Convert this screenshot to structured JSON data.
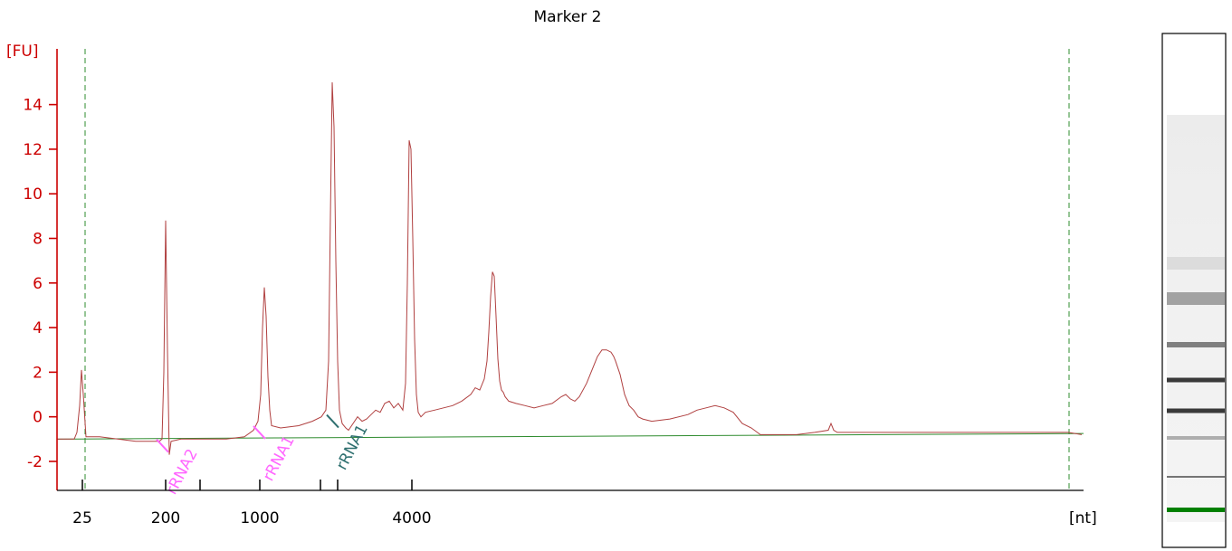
{
  "chart_data": {
    "type": "line",
    "title": "Marker 2",
    "y_unit": "[FU]",
    "x_unit": "[nt]",
    "ylim": [
      -3.3,
      16.5
    ],
    "y_ticks": [
      -2,
      0,
      2,
      4,
      6,
      8,
      10,
      12,
      14
    ],
    "x_ticks": [
      {
        "label": "25",
        "x": 91
      },
      {
        "label": "200",
        "x": 183
      },
      {
        "label": "",
        "x": 221
      },
      {
        "label": "1000",
        "x": 287
      },
      {
        "label": "",
        "x": 354
      },
      {
        "label": "",
        "x": 373
      },
      {
        "label": "4000",
        "x": 455
      }
    ],
    "marker_lines_x": [
      94,
      1181
    ],
    "xlim": [
      63,
      1197
    ],
    "colors": {
      "signal": "#b04040",
      "axis": "#cc0000",
      "baseline": "#2e8b2e",
      "marker": "#2e8b2e",
      "rrna2": "#ff66ff",
      "rrna1": "#2f7070"
    },
    "series": [
      {
        "x": [
          63,
          82,
          85,
          88,
          90,
          92,
          95,
          98,
          110,
          150,
          176,
          179,
          181,
          183,
          185,
          187,
          189,
          200,
          250,
          270,
          280,
          285,
          288,
          290,
          292,
          294,
          296,
          298,
          300,
          310,
          330,
          345,
          355,
          360,
          363,
          365,
          367,
          369,
          371,
          373,
          375,
          378,
          382,
          385,
          390,
          395,
          400,
          405,
          410,
          415,
          420,
          425,
          430,
          435,
          440,
          445,
          448,
          450,
          452,
          454,
          456,
          458,
          460,
          462,
          465,
          470,
          480,
          490,
          500,
          510,
          520,
          525,
          530,
          535,
          538,
          540,
          542,
          544,
          546,
          548,
          550,
          552,
          554,
          556,
          558,
          562,
          570,
          580,
          590,
          600,
          610,
          620,
          625,
          630,
          635,
          640,
          648,
          655,
          660,
          665,
          670,
          675,
          678,
          680,
          685,
          690,
          695,
          700,
          705,
          710,
          720,
          740,
          760,
          770,
          780,
          790,
          800,
          810,
          820,
          830,
          840,
          860,
          880,
          900,
          915,
          918,
          921,
          925,
          935,
          960,
          1000,
          1050,
          1100,
          1150,
          1180,
          1195
        ],
        "y": [
          -1.0,
          -1.0,
          -0.7,
          0.5,
          2.1,
          1.0,
          -0.9,
          -0.9,
          -0.9,
          -1.1,
          -1.1,
          -1.0,
          2.0,
          8.8,
          3.0,
          -1.7,
          -1.1,
          -1.0,
          -1.0,
          -0.9,
          -0.6,
          -0.2,
          1.0,
          4.0,
          5.8,
          4.5,
          1.8,
          0.3,
          -0.4,
          -0.5,
          -0.4,
          -0.2,
          0.0,
          0.3,
          2.5,
          9.0,
          15.0,
          13.0,
          7.0,
          2.5,
          0.3,
          -0.3,
          -0.5,
          -0.6,
          -0.3,
          0.0,
          -0.2,
          -0.1,
          0.1,
          0.3,
          0.2,
          0.6,
          0.7,
          0.4,
          0.6,
          0.3,
          1.5,
          6.0,
          12.4,
          12.0,
          8.0,
          3.5,
          1.0,
          0.2,
          0.0,
          0.2,
          0.3,
          0.4,
          0.5,
          0.7,
          1.0,
          1.3,
          1.2,
          1.7,
          2.5,
          3.8,
          5.4,
          6.5,
          6.3,
          4.5,
          2.6,
          1.6,
          1.2,
          1.1,
          0.9,
          0.7,
          0.6,
          0.5,
          0.4,
          0.5,
          0.6,
          0.9,
          1.0,
          0.8,
          0.7,
          0.9,
          1.5,
          2.2,
          2.7,
          3.0,
          3.0,
          2.9,
          2.7,
          2.5,
          1.9,
          1.0,
          0.5,
          0.3,
          0.0,
          -0.1,
          -0.2,
          -0.1,
          0.1,
          0.3,
          0.4,
          0.5,
          0.4,
          0.2,
          -0.3,
          -0.5,
          -0.8,
          -0.8,
          -0.8,
          -0.7,
          -0.6,
          -0.3,
          -0.6,
          -0.7,
          -0.7,
          -0.7,
          -0.7,
          -0.7,
          -0.7,
          -0.7,
          -0.7,
          -0.8
        ]
      }
    ],
    "baseline": {
      "x": [
        63,
        1197
      ],
      "y": [
        -1.0,
        -0.75
      ]
    },
    "annotations": [
      {
        "label": "rRNA2",
        "x": 178,
        "y": -1.3,
        "color": "#ff66ff"
      },
      {
        "label": "rRNA1",
        "x": 285,
        "y": -0.7,
        "color": "#ff66ff"
      },
      {
        "label": "rRNA1",
        "x": 366,
        "y": -0.2,
        "color": "#2f7070"
      }
    ]
  },
  "gel_image": {
    "bands": [
      {
        "y": 291,
        "height": 14,
        "darkness": 0.15
      },
      {
        "y": 330,
        "height": 14,
        "darkness": 0.4
      },
      {
        "y": 381,
        "height": 6,
        "darkness": 0.55
      },
      {
        "y": 420,
        "height": 5,
        "darkness": 0.85
      },
      {
        "y": 454,
        "height": 5,
        "darkness": 0.85
      },
      {
        "y": 484,
        "height": 4,
        "darkness": 0.35
      },
      {
        "y": 527,
        "height": 2,
        "darkness": 0.6
      }
    ],
    "marker_band_color": "#008000"
  }
}
